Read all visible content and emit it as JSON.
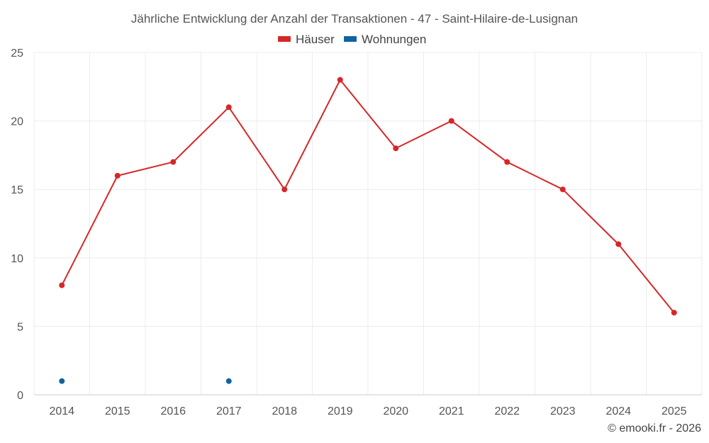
{
  "chart_data": {
    "type": "line",
    "title": "Jährliche Entwicklung der Anzahl der Transaktionen - 47 - Saint-Hilaire-de-Lusignan",
    "x": [
      "2014",
      "2015",
      "2016",
      "2017",
      "2018",
      "2019",
      "2020",
      "2021",
      "2022",
      "2023",
      "2024",
      "2025"
    ],
    "series": [
      {
        "name": "Häuser",
        "color": "#d62728",
        "values": [
          8,
          16,
          17,
          21,
          15,
          23,
          18,
          20,
          17,
          15,
          11,
          6
        ]
      },
      {
        "name": "Wohnungen",
        "color": "#0e64a0",
        "values": [
          1,
          null,
          null,
          1,
          null,
          null,
          null,
          null,
          null,
          null,
          null,
          null
        ]
      }
    ],
    "ylim": [
      0,
      25
    ],
    "yticks": [
      0,
      5,
      10,
      15,
      20,
      25
    ],
    "grid": true,
    "legend": "top-center",
    "xlabel": "",
    "ylabel": ""
  },
  "credit": "© emooki.fr - 2026"
}
